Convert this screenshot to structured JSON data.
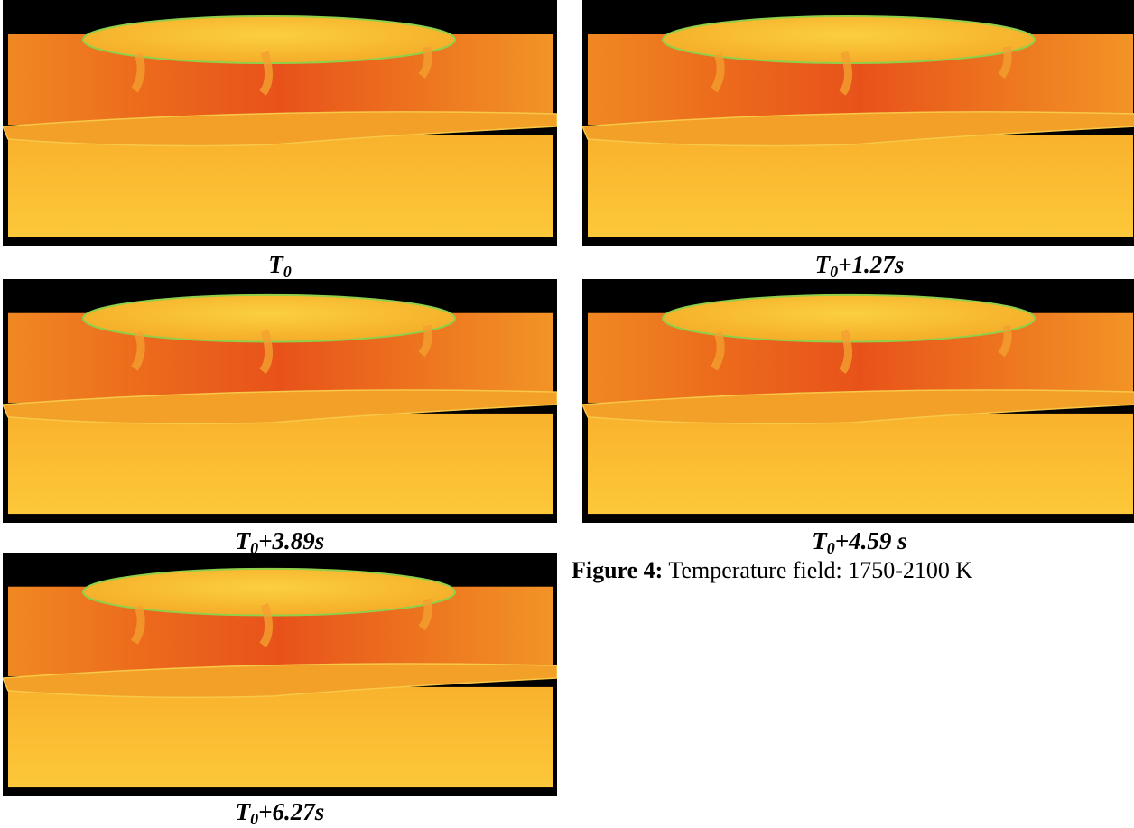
{
  "panels": [
    {
      "label": {
        "base": "T",
        "sub": "0"
      }
    },
    {
      "label": {
        "base": "T",
        "sub": "0",
        "rest": "+1.27s"
      }
    },
    {
      "label": {
        "base": "T",
        "sub": "0",
        "rest": "+3.89s"
      }
    },
    {
      "label": {
        "base": "T",
        "sub": "0",
        "rest": "+4.59 s"
      }
    },
    {
      "label": {
        "base": "T",
        "sub": "0",
        "rest": "+6.27s"
      }
    }
  ],
  "caption": {
    "label": "Figure 4:",
    "text": "Temperature field: 1750-2100 K"
  }
}
